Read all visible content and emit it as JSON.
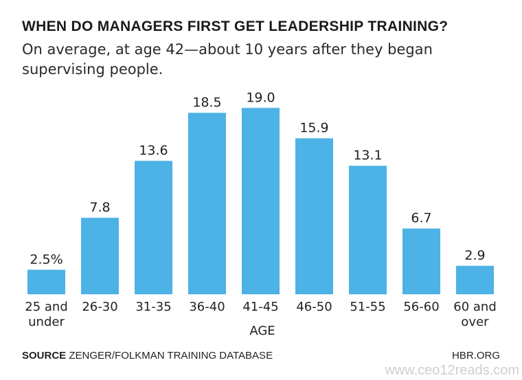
{
  "chart_data": {
    "type": "bar",
    "title": "WHEN DO MANAGERS FIRST GET LEADERSHIP TRAINING?",
    "subtitle": "On average, at age 42—about 10 years after they began supervising people.",
    "categories": [
      [
        "25 and",
        "under"
      ],
      [
        "26-30"
      ],
      [
        "31-35"
      ],
      [
        "36-40"
      ],
      [
        "41-45"
      ],
      [
        "46-50"
      ],
      [
        "51-55"
      ],
      [
        "56-60"
      ],
      [
        "60 and",
        "over"
      ]
    ],
    "values": [
      2.5,
      7.8,
      13.6,
      18.5,
      19.0,
      15.9,
      13.1,
      6.7,
      2.9
    ],
    "value_labels": [
      "2.5%",
      "7.8",
      "13.6",
      "18.5",
      "19.0",
      "15.9",
      "13.1",
      "6.7",
      "2.9"
    ],
    "xlabel": "AGE",
    "ylabel": "",
    "ylim": [
      0,
      20
    ],
    "grid": false,
    "legend": "none",
    "bar_color": "#4db2e5"
  },
  "footer": {
    "source_label": "SOURCE",
    "source_text": "ZENGER/FOLKMAN TRAINING DATABASE",
    "org": "HBR.ORG"
  },
  "watermark": "www.ceo12reads.com"
}
